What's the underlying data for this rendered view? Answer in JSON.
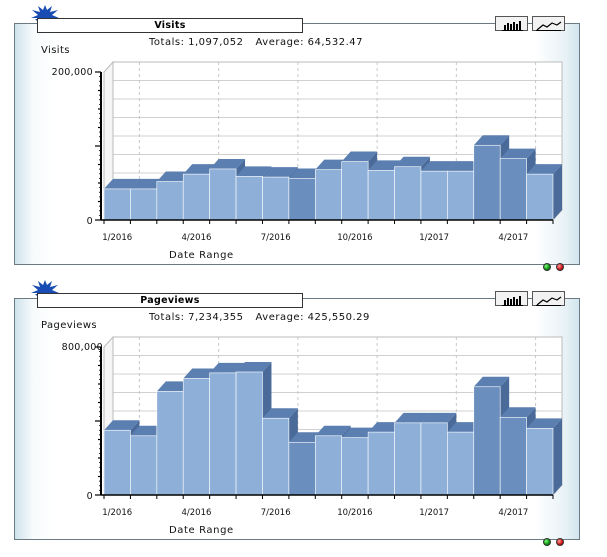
{
  "charts": [
    {
      "title": "Visits",
      "totals_label": "Totals: 1,097,052",
      "average_label": "Average: 64,532.47",
      "y_axis_title": "Visits",
      "x_axis_title": "Date Range",
      "y_top_label": "200,000",
      "y_zero_label": "0"
    },
    {
      "title": "Pageviews",
      "totals_label": "Totals: 7,234,355",
      "average_label": "Average: 425,550.29",
      "y_axis_title": "Pageviews",
      "x_axis_title": "Date Range",
      "y_top_label": "800,000",
      "y_zero_label": "0"
    }
  ],
  "toolbar": {
    "bar_icon": "bar-chart-icon",
    "line_icon": "line-chart-icon"
  },
  "status_dots": {
    "green": "#1a9a1a",
    "red": "#cc1111"
  },
  "chart_data": [
    {
      "type": "bar",
      "title": "Visits",
      "xlabel": "Date Range",
      "ylabel": "Visits",
      "ylim": [
        0,
        200000
      ],
      "tick_labels": [
        "1/2016",
        "4/2016",
        "7/2016",
        "10/2016",
        "1/2017",
        "4/2017"
      ],
      "categories": [
        "1/2016",
        "2/2016",
        "3/2016",
        "4/2016",
        "5/2016",
        "6/2016",
        "7/2016",
        "8/2016",
        "9/2016",
        "10/2016",
        "11/2016",
        "12/2016",
        "1/2017",
        "2/2017",
        "3/2017",
        "4/2017",
        "5/2017"
      ],
      "values": [
        42000,
        42000,
        52000,
        62000,
        69000,
        59000,
        58000,
        56000,
        68000,
        79000,
        67000,
        72000,
        66000,
        66000,
        101000,
        83000,
        62000
      ],
      "highlight": [
        false,
        false,
        false,
        false,
        false,
        false,
        false,
        true,
        false,
        false,
        false,
        false,
        false,
        false,
        true,
        true,
        false
      ],
      "colors": {
        "bar": "#8eb0d8",
        "bar_dark": "#6a8fbf",
        "top": "#5b7fb0",
        "side": "#4a6b9a"
      }
    },
    {
      "type": "bar",
      "title": "Pageviews",
      "xlabel": "Date Range",
      "ylabel": "Pageviews",
      "ylim": [
        0,
        800000
      ],
      "tick_labels": [
        "1/2016",
        "4/2016",
        "7/2016",
        "10/2016",
        "1/2017",
        "4/2017"
      ],
      "categories": [
        "1/2016",
        "2/2016",
        "3/2016",
        "4/2016",
        "5/2016",
        "6/2016",
        "7/2016",
        "8/2016",
        "9/2016",
        "10/2016",
        "11/2016",
        "12/2016",
        "1/2017",
        "2/2017",
        "3/2017",
        "4/2017",
        "5/2017"
      ],
      "values": [
        350000,
        320000,
        560000,
        630000,
        660000,
        665000,
        415000,
        285000,
        320000,
        310000,
        340000,
        390000,
        390000,
        340000,
        585000,
        420000,
        360000
      ],
      "highlight": [
        false,
        false,
        false,
        false,
        false,
        false,
        false,
        true,
        false,
        false,
        false,
        false,
        false,
        false,
        true,
        true,
        false
      ],
      "colors": {
        "bar": "#8eb0d8",
        "bar_dark": "#6a8fbf",
        "top": "#5b7fb0",
        "side": "#4a6b9a"
      }
    }
  ]
}
